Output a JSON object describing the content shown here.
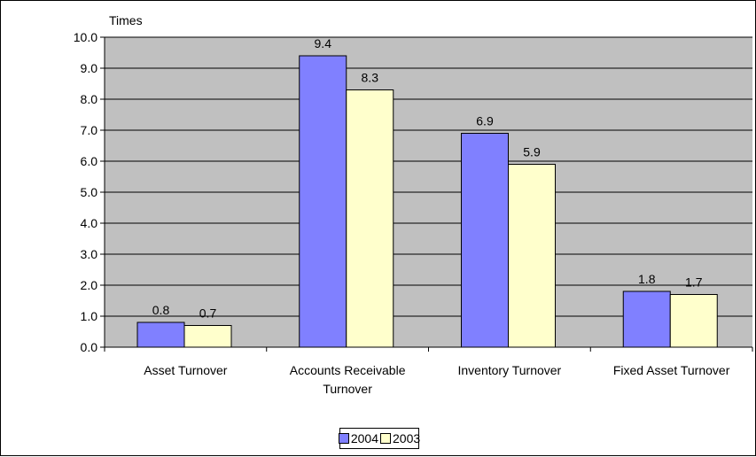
{
  "chart_data": {
    "type": "bar",
    "unit_label": "Times",
    "categories": [
      [
        "Asset Turnover"
      ],
      [
        "Accounts Receivable",
        "Turnover"
      ],
      [
        "Inventory Turnover"
      ],
      [
        "Fixed Asset Turnover"
      ]
    ],
    "series": [
      {
        "name": "2004",
        "color": "#8080ff",
        "values": [
          0.8,
          9.4,
          6.9,
          1.8
        ],
        "labels": [
          "0.8",
          "9.4",
          "6.9",
          "1.8"
        ]
      },
      {
        "name": "2003",
        "color": "#ffffcc",
        "values": [
          0.7,
          8.3,
          5.9,
          1.7
        ],
        "labels": [
          "0.7",
          "8.3",
          "5.9",
          "1.7"
        ]
      }
    ],
    "ylim": [
      0,
      10
    ],
    "yticks": [
      "0.0",
      "1.0",
      "2.0",
      "3.0",
      "4.0",
      "5.0",
      "6.0",
      "7.0",
      "8.0",
      "9.0",
      "10.0"
    ],
    "plot_background": "#c0c0c0",
    "grid": true,
    "legend": "bottom"
  }
}
